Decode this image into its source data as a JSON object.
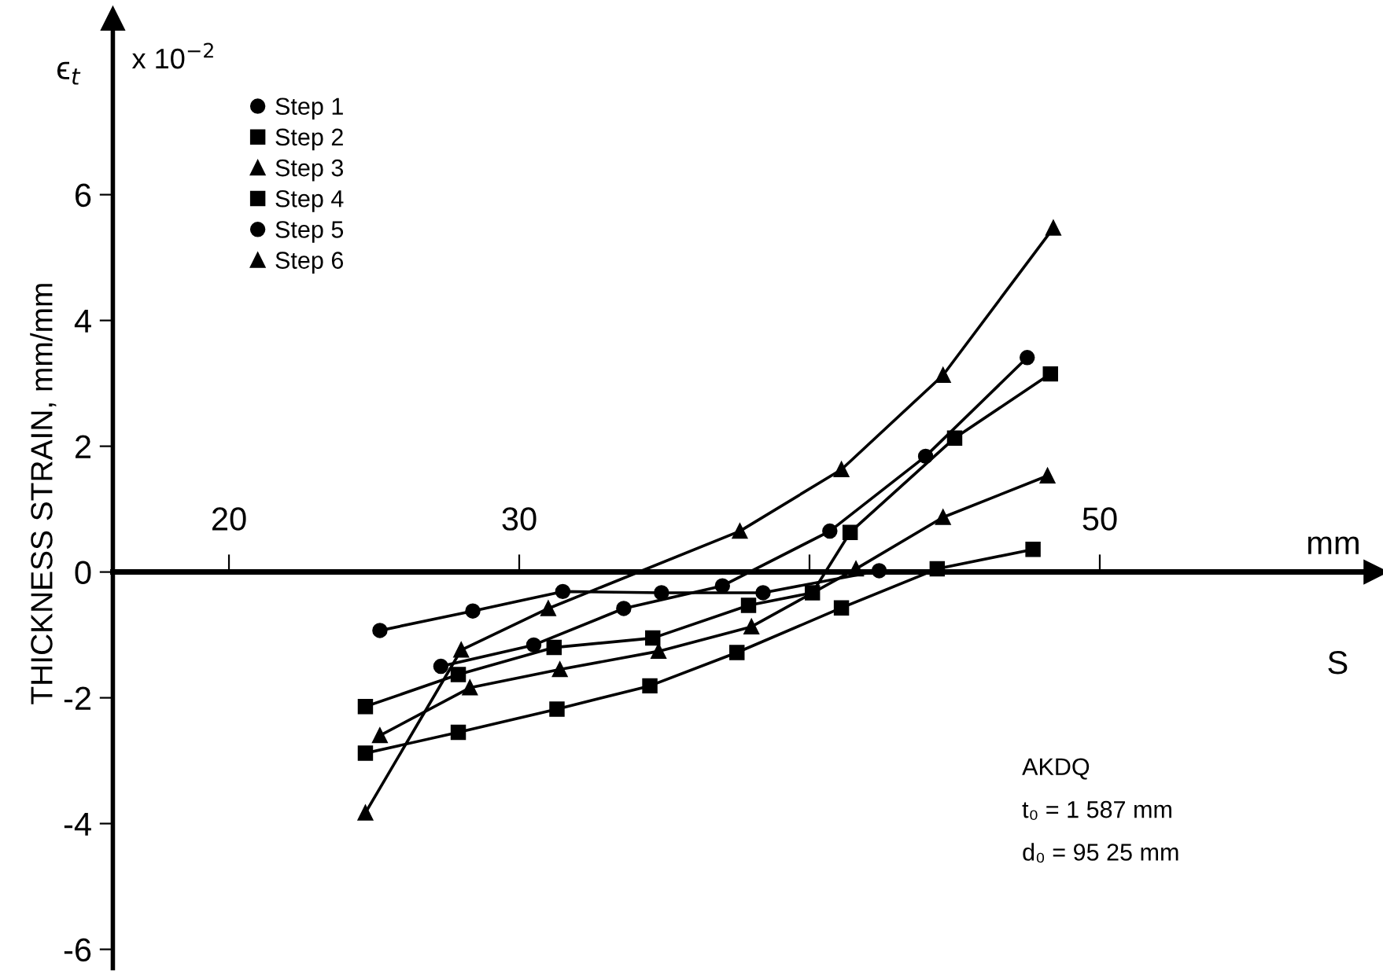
{
  "chart_data": {
    "type": "line",
    "ylabel": "THICKNESS STRAIN, mm/mm",
    "xlabel": "S",
    "xlim": [
      16,
      59.5
    ],
    "ylim": [
      -6.3,
      8.8
    ],
    "xticks": [
      20,
      30,
      {
        "value": 40,
        "label": null
      },
      50
    ],
    "yticks": [
      -6,
      -4,
      -2,
      0,
      2,
      4,
      6
    ],
    "grid": false,
    "legend": "top left",
    "line_style": "solid",
    "annotations": [
      "ϵ$_{t}$",
      "x 10$^{−2}$",
      "mm",
      "AKDQ",
      "t₀ = 1 587 mm",
      "d₀ = 95 25 mm"
    ],
    "series": [
      {
        "name": "Step 1",
        "color": "#000000",
        "marker": "circle",
        "x": [
          25.2,
          28.4,
          31.5,
          34.9,
          38.4,
          42.4
        ],
        "values": [
          -0.93,
          -0.62,
          -0.31,
          -0.33,
          -0.33,
          0.02
        ]
      },
      {
        "name": "Step 2",
        "color": "#000000",
        "marker": "square",
        "x": [
          24.7,
          27.9,
          31.3,
          34.5,
          37.5,
          41.1,
          44.4,
          47.7
        ],
        "values": [
          -2.88,
          -2.55,
          -2.18,
          -1.81,
          -1.28,
          -0.57,
          0.05,
          0.36
        ]
      },
      {
        "name": "Step 3",
        "color": "#000000",
        "marker": "triangle",
        "x": [
          25.2,
          28.3,
          31.4,
          34.8,
          38.0,
          41.6,
          44.6,
          48.2
        ],
        "values": [
          -2.6,
          -1.84,
          -1.55,
          -1.26,
          -0.87,
          0.05,
          0.87,
          1.53
        ]
      },
      {
        "name": "Step 4",
        "color": "#000000",
        "marker": "square",
        "x": [
          24.7,
          27.9,
          31.2,
          34.6,
          37.9,
          40.1,
          41.4,
          45.0,
          48.3
        ],
        "values": [
          -2.14,
          -1.63,
          -1.2,
          -1.05,
          -0.53,
          -0.33,
          0.63,
          2.13,
          3.15
        ]
      },
      {
        "name": "Step 5",
        "color": "#000000",
        "marker": "circle",
        "x": [
          27.3,
          30.5,
          33.6,
          37.0,
          40.7,
          44.0,
          47.5
        ],
        "values": [
          -1.5,
          -1.16,
          -0.58,
          -0.22,
          0.65,
          1.84,
          3.41
        ]
      },
      {
        "name": "Step 6",
        "color": "#000000",
        "marker": "triangle",
        "x": [
          24.7,
          28.0,
          31.0,
          37.6,
          41.1,
          44.6,
          48.4
        ],
        "values": [
          -3.83,
          -1.24,
          -0.58,
          0.65,
          1.63,
          3.13,
          5.47
        ]
      }
    ]
  }
}
